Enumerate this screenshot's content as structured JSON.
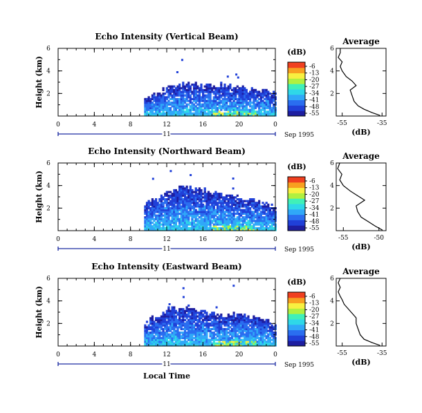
{
  "figure": {
    "date_label": "Sep 1995",
    "xlabel": "Local Time",
    "day_label": "11",
    "ylabel": "Height (km)",
    "avg_title": "Average",
    "avg_xlabel": "(dB)",
    "cbar_unit": "(dB)"
  },
  "colors": {
    "scale": [
      "#1e1ea0",
      "#2040d8",
      "#2a6ef0",
      "#30a8f8",
      "#2fd8e8",
      "#40f0b8",
      "#b0f040",
      "#f8f040",
      "#f8a020",
      "#f04020"
    ],
    "frame": "#000000",
    "line": "#000000"
  },
  "chart_data": [
    {
      "type": "heatmap",
      "title": "Echo Intensity (Vertical Beam)",
      "x_ticks": [
        "0",
        "4",
        "8",
        "12",
        "16",
        "20",
        "0"
      ],
      "xlim": [
        0,
        24
      ],
      "y_ticks": [
        "6",
        "4",
        "2"
      ],
      "ylim": [
        0,
        6
      ],
      "cbar_ticks": [
        "-6",
        "-13",
        "-20",
        "-27",
        "-34",
        "-41",
        "-48",
        "-55"
      ],
      "cbar_range": [
        -55,
        -6
      ],
      "echo_start_hour": 9.5,
      "echo_top_km": [
        {
          "t": 9.5,
          "h": 1.4
        },
        {
          "t": 12,
          "h": 2.4
        },
        {
          "t": 14,
          "h": 2.8
        },
        {
          "t": 16,
          "h": 2.6
        },
        {
          "t": 18,
          "h": 2.7
        },
        {
          "t": 20,
          "h": 2.4
        },
        {
          "t": 22,
          "h": 2.3
        },
        {
          "t": 24,
          "h": 1.8
        }
      ],
      "average_profile": {
        "x_ticks": [
          "-55",
          "-35"
        ],
        "xlim": [
          -58,
          -33
        ],
        "y_ticks": [
          "6",
          "4",
          "2"
        ],
        "ylim": [
          0,
          6
        ],
        "points": [
          {
            "h": 0.05,
            "db": -36
          },
          {
            "h": 0.3,
            "db": -40
          },
          {
            "h": 0.6,
            "db": -44
          },
          {
            "h": 0.9,
            "db": -47
          },
          {
            "h": 1.3,
            "db": -49
          },
          {
            "h": 1.8,
            "db": -50
          },
          {
            "h": 2.3,
            "db": -51
          },
          {
            "h": 2.7,
            "db": -48
          },
          {
            "h": 3.1,
            "db": -50
          },
          {
            "h": 3.5,
            "db": -53
          },
          {
            "h": 4.0,
            "db": -55
          },
          {
            "h": 4.4,
            "db": -56
          },
          {
            "h": 4.8,
            "db": -55
          },
          {
            "h": 5.2,
            "db": -57
          },
          {
            "h": 5.6,
            "db": -56
          },
          {
            "h": 6.0,
            "db": -56
          }
        ]
      }
    },
    {
      "type": "heatmap",
      "title": "Echo Intensity (Northward Beam)",
      "x_ticks": [
        "0",
        "4",
        "8",
        "12",
        "16",
        "20",
        "0"
      ],
      "xlim": [
        0,
        24
      ],
      "y_ticks": [
        "6",
        "4",
        "2"
      ],
      "ylim": [
        0,
        6
      ],
      "cbar_ticks": [
        "-6",
        "-13",
        "-20",
        "-27",
        "-34",
        "-41",
        "-48",
        "-55"
      ],
      "cbar_range": [
        -55,
        -6
      ],
      "echo_start_hour": 9.5,
      "echo_top_km": [
        {
          "t": 9.5,
          "h": 2.3
        },
        {
          "t": 12,
          "h": 3.4
        },
        {
          "t": 14,
          "h": 3.8
        },
        {
          "t": 16,
          "h": 3.5
        },
        {
          "t": 18,
          "h": 3.1
        },
        {
          "t": 20,
          "h": 2.9
        },
        {
          "t": 22,
          "h": 2.5
        },
        {
          "t": 24,
          "h": 2.1
        }
      ],
      "average_profile": {
        "x_ticks": [
          "-55",
          "-50"
        ],
        "xlim": [
          -56,
          -49
        ],
        "y_ticks": [
          "6",
          "4",
          "2"
        ],
        "ylim": [
          0,
          6
        ],
        "points": [
          {
            "h": 0.05,
            "db": -49.5
          },
          {
            "h": 0.4,
            "db": -50.5
          },
          {
            "h": 0.8,
            "db": -51.5
          },
          {
            "h": 1.2,
            "db": -52.5
          },
          {
            "h": 1.7,
            "db": -53
          },
          {
            "h": 2.2,
            "db": -53.2
          },
          {
            "h": 2.7,
            "db": -52
          },
          {
            "h": 3.1,
            "db": -53
          },
          {
            "h": 3.5,
            "db": -54
          },
          {
            "h": 4.0,
            "db": -55
          },
          {
            "h": 4.5,
            "db": -55.5
          },
          {
            "h": 5.0,
            "db": -55.2
          },
          {
            "h": 5.5,
            "db": -55.8
          },
          {
            "h": 6.0,
            "db": -55.5
          }
        ]
      }
    },
    {
      "type": "heatmap",
      "title": "Echo Intensity (Eastward Beam)",
      "x_ticks": [
        "0",
        "4",
        "8",
        "12",
        "16",
        "20",
        "0"
      ],
      "xlim": [
        0,
        24
      ],
      "y_ticks": [
        "6",
        "4",
        "2"
      ],
      "ylim": [
        0,
        6
      ],
      "cbar_ticks": [
        "-6",
        "-13",
        "-20",
        "-27",
        "-34",
        "-41",
        "-48",
        "-55"
      ],
      "cbar_range": [
        -55,
        -6
      ],
      "echo_start_hour": 9.5,
      "echo_top_km": [
        {
          "t": 9.5,
          "h": 1.9
        },
        {
          "t": 12,
          "h": 3.2
        },
        {
          "t": 14,
          "h": 3.4
        },
        {
          "t": 16,
          "h": 3.0
        },
        {
          "t": 18,
          "h": 2.6
        },
        {
          "t": 20,
          "h": 2.8
        },
        {
          "t": 22,
          "h": 2.4
        },
        {
          "t": 24,
          "h": 1.9
        }
      ],
      "average_profile": {
        "x_ticks": [
          "-55",
          "-35"
        ],
        "xlim": [
          -58,
          -33
        ],
        "y_ticks": [
          "6",
          "4",
          "2"
        ],
        "ylim": [
          0,
          6
        ],
        "points": [
          {
            "h": 0.05,
            "db": -36
          },
          {
            "h": 0.3,
            "db": -40
          },
          {
            "h": 0.6,
            "db": -44
          },
          {
            "h": 1.0,
            "db": -46
          },
          {
            "h": 1.5,
            "db": -47
          },
          {
            "h": 2.0,
            "db": -48
          },
          {
            "h": 2.5,
            "db": -48
          },
          {
            "h": 2.9,
            "db": -50
          },
          {
            "h": 3.3,
            "db": -52
          },
          {
            "h": 3.7,
            "db": -54
          },
          {
            "h": 4.1,
            "db": -55
          },
          {
            "h": 4.4,
            "db": -56
          },
          {
            "h": 4.8,
            "db": -57
          },
          {
            "h": 5.2,
            "db": -56
          },
          {
            "h": 5.6,
            "db": -57
          },
          {
            "h": 6.0,
            "db": -56
          }
        ]
      }
    }
  ]
}
